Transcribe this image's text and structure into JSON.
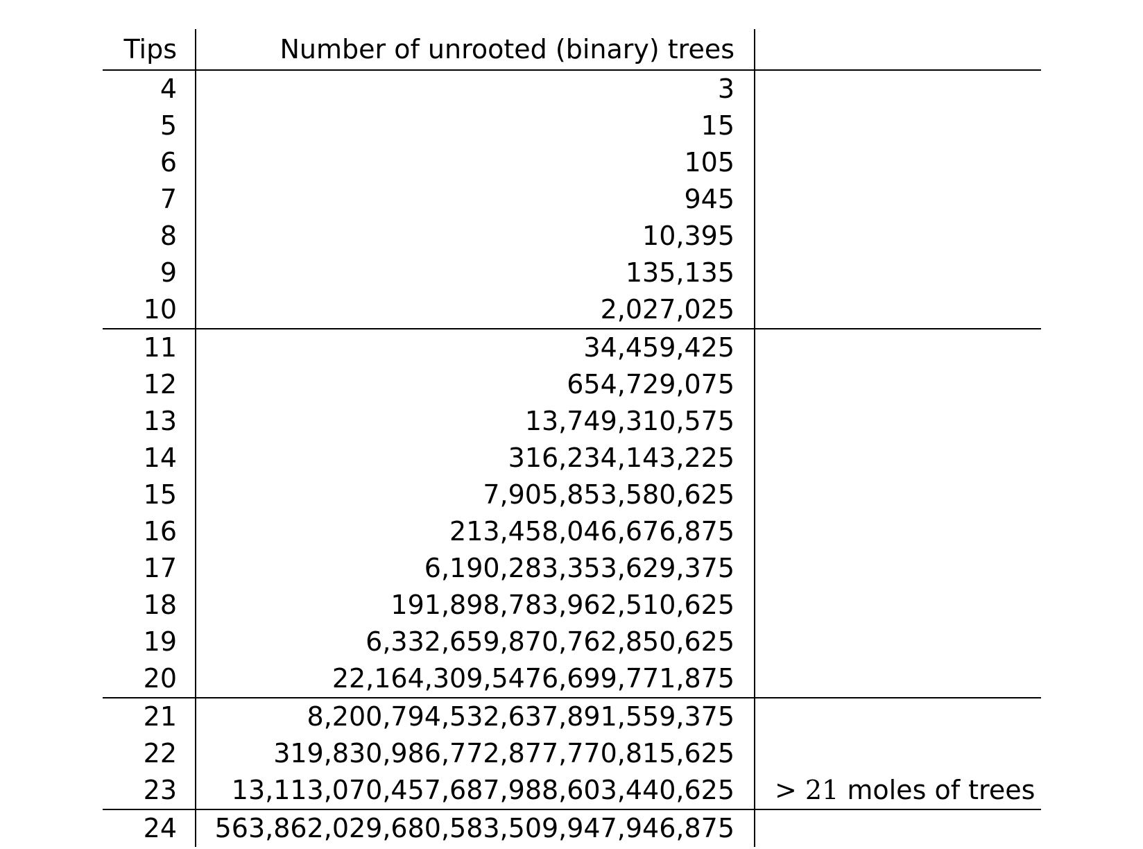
{
  "header": {
    "tips": "Tips",
    "count": "Number of unrooted (binary) trees",
    "note": ""
  },
  "rows": [
    {
      "tips": "4",
      "count": "3",
      "note_math": "",
      "note_text": ""
    },
    {
      "tips": "5",
      "count": "15",
      "note_math": "",
      "note_text": ""
    },
    {
      "tips": "6",
      "count": "105",
      "note_math": "",
      "note_text": ""
    },
    {
      "tips": "7",
      "count": "945",
      "note_math": "",
      "note_text": ""
    },
    {
      "tips": "8",
      "count": "10,395",
      "note_math": "",
      "note_text": ""
    },
    {
      "tips": "9",
      "count": "135,135",
      "note_math": "",
      "note_text": ""
    },
    {
      "tips": "10",
      "count": "2,027,025",
      "note_math": "",
      "note_text": ""
    },
    {
      "tips": "11",
      "count": "34,459,425",
      "note_math": "",
      "note_text": ""
    },
    {
      "tips": "12",
      "count": "654,729,075",
      "note_math": "",
      "note_text": ""
    },
    {
      "tips": "13",
      "count": "13,749,310,575",
      "note_math": "",
      "note_text": ""
    },
    {
      "tips": "14",
      "count": "316,234,143,225",
      "note_math": "",
      "note_text": ""
    },
    {
      "tips": "15",
      "count": "7,905,853,580,625",
      "note_math": "",
      "note_text": ""
    },
    {
      "tips": "16",
      "count": "213,458,046,676,875",
      "note_math": "",
      "note_text": ""
    },
    {
      "tips": "17",
      "count": "6,190,283,353,629,375",
      "note_math": "",
      "note_text": ""
    },
    {
      "tips": "18",
      "count": "191,898,783,962,510,625",
      "note_math": "",
      "note_text": ""
    },
    {
      "tips": "19",
      "count": "6,332,659,870,762,850,625",
      "note_math": "",
      "note_text": ""
    },
    {
      "tips": "20",
      "count": "22,164,309,5476,699,771,875",
      "note_math": "",
      "note_text": ""
    },
    {
      "tips": "21",
      "count": "8,200,794,532,637,891,559,375",
      "note_math": "",
      "note_text": ""
    },
    {
      "tips": "22",
      "count": "319,830,986,772,877,770,815,625",
      "note_math": "",
      "note_text": ""
    },
    {
      "tips": "23",
      "count": "13,113,070,457,687,988,603,440,625",
      "note_math": "> 21",
      "note_text": " moles of trees"
    },
    {
      "tips": "24",
      "count": "563,862,029,680,583,509,947,946,875",
      "note_math": "",
      "note_text": ""
    }
  ],
  "rules_after_rows": [
    6,
    16,
    19
  ]
}
